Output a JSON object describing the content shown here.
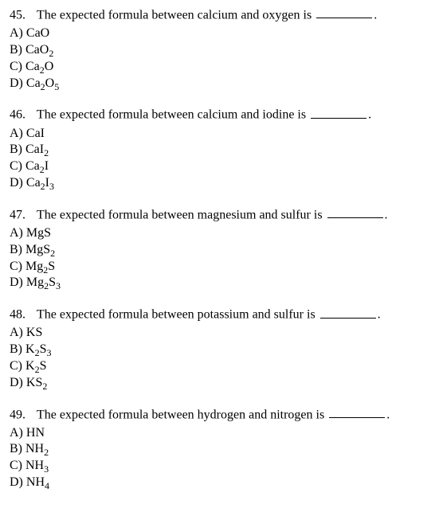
{
  "questions": [
    {
      "number": "45.",
      "stem_before": "The expected formula between calcium and oxygen is",
      "stem_after": ".",
      "options": [
        {
          "letter": "A)",
          "prefix": "CaO",
          "sub": ""
        },
        {
          "letter": "B)",
          "prefix": "CaO",
          "sub": "2"
        },
        {
          "letter": "C)",
          "prefix": "Ca",
          "sub": "2",
          "suffix": "O"
        },
        {
          "letter": "D)",
          "prefix": "Ca",
          "sub": "2",
          "suffix": "O",
          "sub2": "5"
        }
      ]
    },
    {
      "number": "46.",
      "stem_before": "The expected formula between calcium and iodine is",
      "stem_after": ".",
      "options": [
        {
          "letter": "A)",
          "prefix": "CaI",
          "sub": ""
        },
        {
          "letter": "B)",
          "prefix": "CaI",
          "sub": "2"
        },
        {
          "letter": "C)",
          "prefix": "Ca",
          "sub": "2",
          "suffix": "I"
        },
        {
          "letter": "D)",
          "prefix": "Ca",
          "sub": "2",
          "suffix": "I",
          "sub2": "3"
        }
      ]
    },
    {
      "number": "47.",
      "stem_before": "The expected formula between magnesium and sulfur is",
      "stem_after": ".",
      "options": [
        {
          "letter": "A)",
          "prefix": "MgS",
          "sub": ""
        },
        {
          "letter": "B)",
          "prefix": "MgS",
          "sub": "2"
        },
        {
          "letter": "C)",
          "prefix": "Mg",
          "sub": "2",
          "suffix": "S"
        },
        {
          "letter": "D)",
          "prefix": "Mg",
          "sub": "2",
          "suffix": "S",
          "sub2": "3"
        }
      ]
    },
    {
      "number": "48.",
      "stem_before": "The expected formula between potassium and sulfur is",
      "stem_after": ".",
      "options": [
        {
          "letter": "A)",
          "prefix": "KS",
          "sub": ""
        },
        {
          "letter": "B)",
          "prefix": "K",
          "sub": "2",
          "suffix": "S",
          "sub2": "3"
        },
        {
          "letter": "C)",
          "prefix": "K",
          "sub": "2",
          "suffix": "S"
        },
        {
          "letter": "D)",
          "prefix": "KS",
          "sub": "2"
        }
      ]
    },
    {
      "number": "49.",
      "stem_before": "The expected formula between hydrogen and nitrogen is",
      "stem_after": ".",
      "options": [
        {
          "letter": "A)",
          "prefix": "HN",
          "sub": ""
        },
        {
          "letter": "B)",
          "prefix": "NH",
          "sub": "2"
        },
        {
          "letter": "C)",
          "prefix": "NH",
          "sub": "3"
        },
        {
          "letter": "D)",
          "prefix": "NH",
          "sub": "4"
        }
      ]
    }
  ]
}
